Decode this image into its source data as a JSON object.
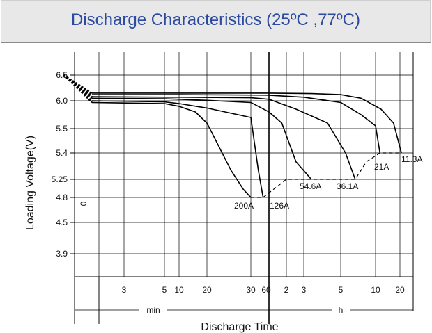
{
  "title": "Discharge Characteristics (25ºC ,77ºC)",
  "chart_data": {
    "type": "line",
    "title": "Discharge Characteristics (25ºC ,77ºC)",
    "xlabel": "Discharge Time",
    "ylabel": "Loading  Voltage(V)",
    "x_scale": "log",
    "x_tick_labels": [
      "3",
      "5",
      "10",
      "20",
      "30",
      "60",
      "2",
      "3",
      "5",
      "10",
      "20"
    ],
    "x_tick_minutes": [
      3,
      5,
      10,
      20,
      30,
      60,
      120,
      180,
      300,
      600,
      1200
    ],
    "y_tick_labels": [
      "6.5",
      "6.0",
      "5.5",
      "5.4",
      "5.25",
      "4.8",
      "4.5",
      "3.9"
    ],
    "y_extra_label": "0",
    "unit_labels": {
      "min": "min",
      "h": "h"
    },
    "grid": true,
    "series": [
      {
        "name": "200A",
        "x_minutes": [
          1.4,
          2,
          3,
          5,
          10,
          15,
          20,
          25,
          28,
          30
        ],
        "y": [
          6.5,
          5.97,
          5.96,
          5.95,
          5.9,
          5.8,
          5.6,
          5.3,
          5.0,
          4.8
        ]
      },
      {
        "name": "126A",
        "x_minutes": [
          1.4,
          2,
          5,
          10,
          20,
          30,
          40,
          48
        ],
        "y": [
          6.5,
          6.0,
          5.98,
          5.95,
          5.87,
          5.7,
          5.3,
          4.8
        ]
      },
      {
        "name": "54.6A",
        "x_minutes": [
          1.4,
          2,
          5,
          10,
          20,
          30,
          60,
          100,
          150,
          200
        ],
        "y": [
          6.5,
          6.05,
          6.04,
          6.03,
          6.01,
          5.97,
          5.8,
          5.6,
          5.35,
          5.25
        ]
      },
      {
        "name": "36.1A",
        "x_minutes": [
          1.4,
          2,
          5,
          10,
          30,
          60,
          150,
          250,
          330,
          400
        ],
        "y": [
          6.5,
          6.08,
          6.07,
          6.07,
          6.06,
          6.03,
          5.85,
          5.6,
          5.4,
          5.25
        ]
      },
      {
        "name": "21A",
        "x_minutes": [
          1.4,
          2,
          10,
          60,
          180,
          300,
          450,
          600,
          680
        ],
        "y": [
          6.5,
          6.12,
          6.12,
          6.11,
          6.07,
          5.97,
          5.75,
          5.55,
          5.4
        ]
      },
      {
        "name": "11.3A",
        "x_minutes": [
          1.4,
          2,
          10,
          60,
          200,
          300,
          450,
          700,
          1000,
          1250
        ],
        "y": [
          6.5,
          6.15,
          6.15,
          6.15,
          6.14,
          6.12,
          6.05,
          5.85,
          5.6,
          5.4
        ]
      }
    ],
    "cutoff_line": {
      "style": "dashed",
      "x_minutes": [
        30,
        48,
        120,
        200,
        400,
        500,
        680,
        1250
      ],
      "y": [
        4.8,
        4.8,
        5.25,
        5.25,
        5.25,
        5.35,
        5.4,
        5.4
      ]
    }
  }
}
